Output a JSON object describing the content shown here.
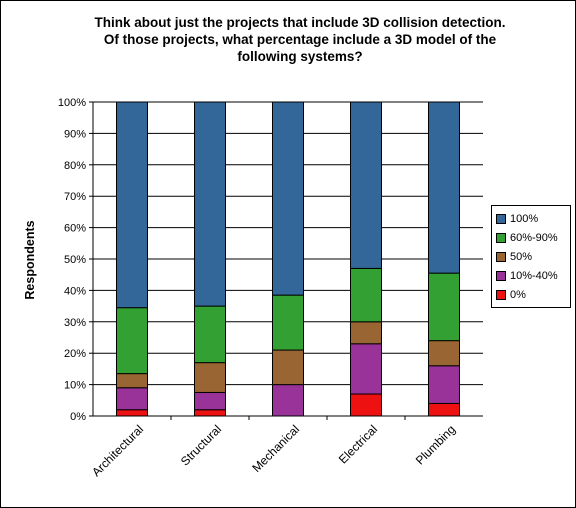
{
  "chart_data": {
    "type": "bar",
    "stacked": true,
    "title": "Think about just the projects that include 3D collision detection.\nOf those projects, what percentage include a 3D model of the\nfollowing systems?",
    "ylabel": "Respondents",
    "xlabel": "",
    "ylim": [
      0,
      100
    ],
    "yticks": [
      "0%",
      "10%",
      "20%",
      "30%",
      "40%",
      "50%",
      "60%",
      "70%",
      "80%",
      "90%",
      "100%"
    ],
    "categories": [
      "Architectural",
      "Structural",
      "Mechanical",
      "Electrical",
      "Plumbing"
    ],
    "series": [
      {
        "name": "0%",
        "color": "#ee1111",
        "values": [
          2,
          2,
          0,
          7,
          4
        ]
      },
      {
        "name": "10%-40%",
        "color": "#993399",
        "values": [
          7,
          5.5,
          10,
          16,
          12
        ]
      },
      {
        "name": "50%",
        "color": "#996633",
        "values": [
          4.5,
          9.5,
          11,
          7,
          8
        ]
      },
      {
        "name": "60%-90%",
        "color": "#33a033",
        "values": [
          21,
          18,
          17.5,
          17,
          21.5
        ]
      },
      {
        "name": "100%",
        "color": "#336699",
        "values": [
          65.5,
          65,
          61.5,
          53,
          54.5
        ]
      }
    ],
    "grid": true,
    "legend_position": "right",
    "legend_order": [
      "100%",
      "60%-90%",
      "50%",
      "10%-40%",
      "0%"
    ]
  }
}
